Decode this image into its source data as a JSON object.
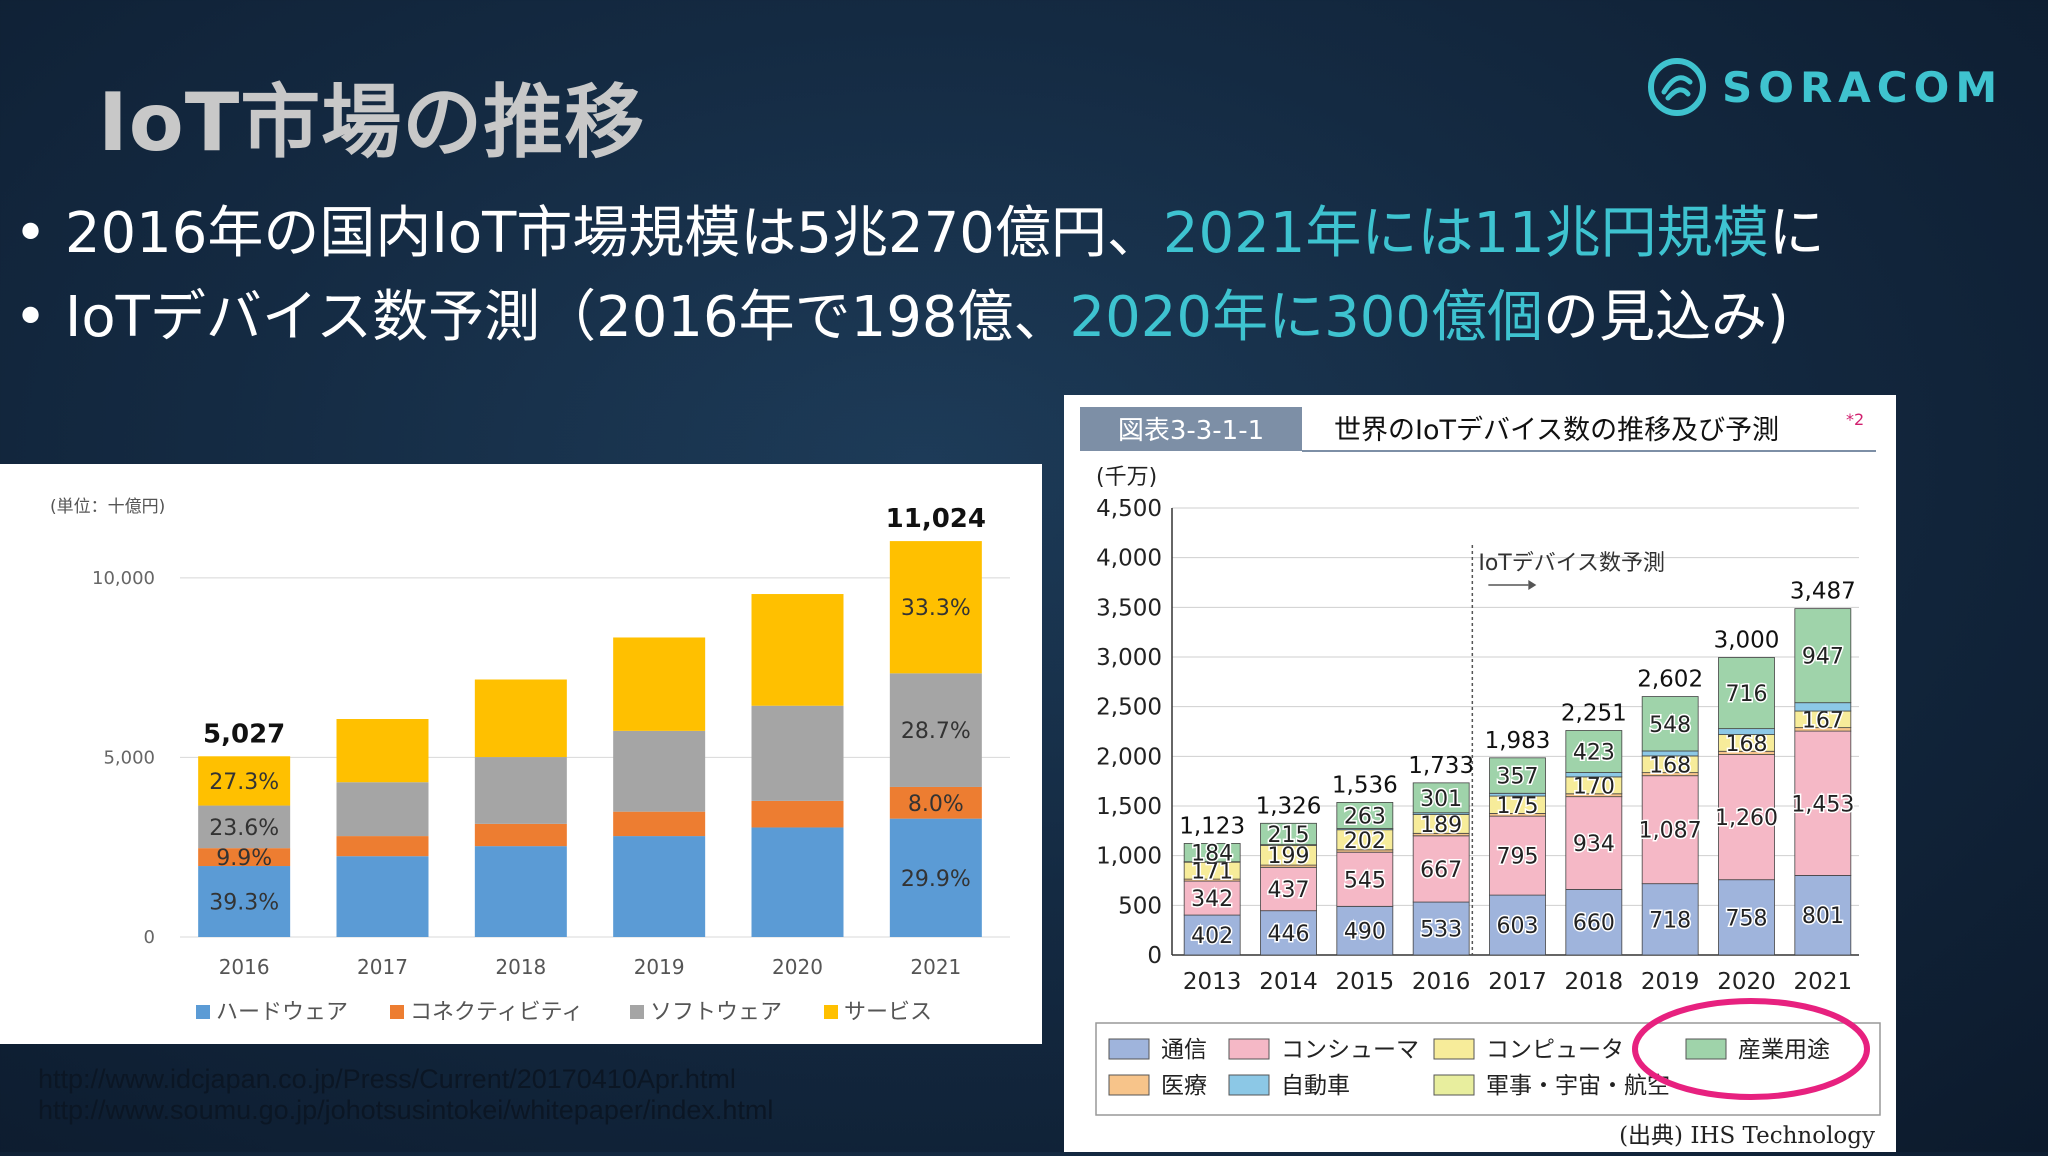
{
  "slide": {
    "title": "IoT市場の推移",
    "logo_text": "SORACOM",
    "bullet1": {
      "prefix": "• 2016年の国内IoT市場規模は5兆270億円、",
      "highlight": "2021年には11兆円規模",
      "suffix": "に"
    },
    "bullet2": {
      "prefix": "• IoTデバイス数予測（2016年で198億、",
      "highlight": "2020年に300億個",
      "suffix": "の見込み)"
    },
    "urls": [
      "http://www.idcjapan.co.jp/Press/Current/20170410Apr.html",
      "http://www.soumu.go.jp/johotsusintokei/whitepaper/index.html"
    ]
  },
  "chart_data": [
    {
      "type": "bar",
      "stacked": true,
      "unit_label": "(単位：十億円)",
      "categories": [
        "2016",
        "2017",
        "2018",
        "2019",
        "2020",
        "2021"
      ],
      "ylim": [
        0,
        11500
      ],
      "yticks": [
        "0",
        "5,000",
        "10,000"
      ],
      "ytick_values": [
        0,
        5000,
        10000
      ],
      "series": [
        {
          "name": "ハードウェア",
          "color": "#5b9bd5",
          "values": [
            1976,
            2250,
            2530,
            2810,
            3050,
            3296
          ]
        },
        {
          "name": "コネクティビティ",
          "color": "#ed7d31",
          "values": [
            498,
            560,
            620,
            680,
            740,
            882
          ]
        },
        {
          "name": "ソフトウェア",
          "color": "#a5a5a5",
          "values": [
            1186,
            1500,
            1860,
            2250,
            2650,
            3164
          ]
        },
        {
          "name": "サービス",
          "color": "#ffc000",
          "values": [
            1372,
            1760,
            2160,
            2600,
            3110,
            3682
          ]
        }
      ],
      "totals": [
        "5,027",
        "",
        "",
        "",
        "",
        "11,024"
      ],
      "segment_labels": {
        "2016": [
          "39.3%",
          "9.9%",
          "23.6%",
          "27.3%"
        ],
        "2021": [
          "29.9%",
          "8.0%",
          "28.7%",
          "33.3%"
        ]
      }
    },
    {
      "type": "bar",
      "stacked": true,
      "figure_label": "図表3-3-1-1",
      "title": "世界のIoTデバイス数の推移及び予測",
      "title_note": "*2",
      "ylabel": "(千万)",
      "categories": [
        "2013",
        "2014",
        "2015",
        "2016",
        "2017",
        "2018",
        "2019",
        "2020",
        "2021"
      ],
      "ylim": [
        0,
        4500
      ],
      "yticks": [
        "0",
        "500",
        "1,000",
        "1,500",
        "2,000",
        "2,500",
        "3,000",
        "3,500",
        "4,000",
        "4,500"
      ],
      "ytick_values": [
        0,
        500,
        1000,
        1500,
        2000,
        2500,
        3000,
        3500,
        4000,
        4500
      ],
      "forecast_label": "IoTデバイス数予測",
      "forecast_start_index": 4,
      "series": [
        {
          "name": "通信",
          "color": "#9fb4dc",
          "values": [
            402,
            446,
            490,
            533,
            603,
            660,
            718,
            758,
            801
          ],
          "labels": [
            "402",
            "446",
            "490",
            "533",
            "603",
            "660",
            "718",
            "758",
            "801"
          ]
        },
        {
          "name": "コンシューマ",
          "color": "#f5b8c6",
          "values": [
            342,
            437,
            545,
            667,
            795,
            934,
            1087,
            1260,
            1453
          ],
          "labels": [
            "342",
            "437",
            "545",
            "667",
            "795",
            "934",
            "1,087",
            "1,260",
            "1,453"
          ]
        },
        {
          "name": "医療",
          "color": "#f7c48a",
          "values": [
            20,
            22,
            24,
            25,
            27,
            29,
            31,
            33,
            35
          ],
          "labels": [
            "",
            "",
            "",
            "",
            "",
            "",
            "",
            "",
            ""
          ]
        },
        {
          "name": "コンピュータ",
          "color": "#f7ec9a",
          "values": [
            171,
            199,
            202,
            189,
            175,
            170,
            168,
            168,
            167
          ],
          "labels": [
            "171",
            "199",
            "202",
            "189",
            "175",
            "170",
            "168",
            "168",
            "167"
          ]
        },
        {
          "name": "自動車",
          "color": "#8cc8e6",
          "values": [
            4,
            7,
            12,
            18,
            28,
            44,
            50,
            60,
            84
          ],
          "labels": [
            "",
            "",
            "",
            "",
            "",
            "",
            "",
            "",
            ""
          ]
        },
        {
          "name": "産業用途",
          "color": "#9fd3aa",
          "values": [
            184,
            215,
            263,
            301,
            357,
            423,
            548,
            716,
            947
          ],
          "labels": [
            "184",
            "215",
            "263",
            "301",
            "357",
            "423",
            "548",
            "716",
            "947"
          ]
        }
      ],
      "totals": [
        "1,123",
        "1,326",
        "1,536",
        "1,733",
        "1,983",
        "2,251",
        "2,602",
        "3,000",
        "3,487"
      ],
      "legend": [
        "通信",
        "コンシューマ",
        "コンピュータ",
        "産業用途",
        "医療",
        "自動車",
        "軍事・宇宙・航空"
      ],
      "legend_colors": [
        "#9fb4dc",
        "#f5b8c6",
        "#f7ec9a",
        "#9fd3aa",
        "#f7c48a",
        "#8cc8e6",
        "#e8ee9e"
      ],
      "source": "(出典) IHS Technology"
    }
  ]
}
